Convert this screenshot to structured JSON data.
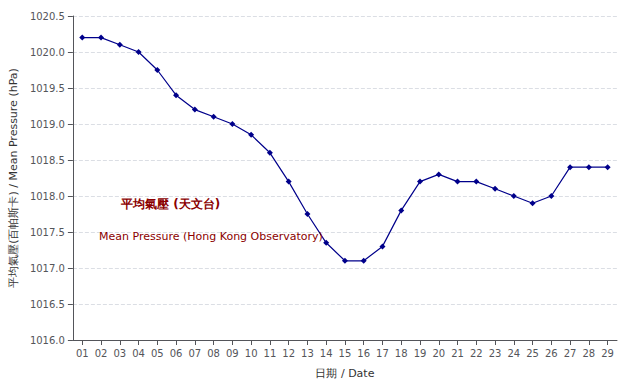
{
  "chart_data": {
    "type": "line",
    "xlabel": "日期 / Date",
    "ylabel": "平均氣壓(百帕斯卡) / Mean Pressure (hPa)",
    "x": [
      1,
      2,
      3,
      4,
      5,
      6,
      7,
      8,
      9,
      10,
      11,
      12,
      13,
      14,
      15,
      16,
      17,
      18,
      19,
      20,
      21,
      22,
      23,
      24,
      25,
      26,
      27,
      28,
      29
    ],
    "values": [
      1020.2,
      1020.2,
      1020.1,
      1020.0,
      1019.75,
      1019.4,
      1019.2,
      1019.1,
      1019.0,
      1018.85,
      1018.6,
      1018.2,
      1017.75,
      1017.35,
      1017.1,
      1017.1,
      1017.3,
      1017.8,
      1018.2,
      1018.3,
      1018.2,
      1018.2,
      1018.1,
      1018.0,
      1017.9,
      1018.0,
      1018.4,
      1018.4,
      1018.4
    ],
    "color": "#00008B",
    "marker": "diamond",
    "xlim": [
      0.5,
      29.5
    ],
    "xticks": [
      {
        "value": 1,
        "label": "01"
      },
      {
        "value": 2,
        "label": "02"
      },
      {
        "value": 3,
        "label": "03"
      },
      {
        "value": 4,
        "label": "04"
      },
      {
        "value": 5,
        "label": "05"
      },
      {
        "value": 6,
        "label": "06"
      },
      {
        "value": 7,
        "label": "07"
      },
      {
        "value": 8,
        "label": "08"
      },
      {
        "value": 9,
        "label": "09"
      },
      {
        "value": 10,
        "label": "10"
      },
      {
        "value": 11,
        "label": "11"
      },
      {
        "value": 12,
        "label": "12"
      },
      {
        "value": 13,
        "label": "13"
      },
      {
        "value": 14,
        "label": "14"
      },
      {
        "value": 15,
        "label": "15"
      },
      {
        "value": 16,
        "label": "16"
      },
      {
        "value": 17,
        "label": "17"
      },
      {
        "value": 18,
        "label": "18"
      },
      {
        "value": 19,
        "label": "19"
      },
      {
        "value": 20,
        "label": "20"
      },
      {
        "value": 21,
        "label": "21"
      },
      {
        "value": 22,
        "label": "22"
      },
      {
        "value": 23,
        "label": "23"
      },
      {
        "value": 24,
        "label": "24"
      },
      {
        "value": 25,
        "label": "25"
      },
      {
        "value": 26,
        "label": "26"
      },
      {
        "value": 27,
        "label": "27"
      },
      {
        "value": 28,
        "label": "28"
      },
      {
        "value": 29,
        "label": "29"
      }
    ],
    "ylim": [
      1016.0,
      1020.5
    ],
    "yticks": [
      {
        "value": 1016.0,
        "label": "1016.0"
      },
      {
        "value": 1016.5,
        "label": "1016.5"
      },
      {
        "value": 1017.0,
        "label": "1017.0"
      },
      {
        "value": 1017.5,
        "label": "1017.5"
      },
      {
        "value": 1018.0,
        "label": "1018.0"
      },
      {
        "value": 1018.5,
        "label": "1018.5"
      },
      {
        "value": 1019.0,
        "label": "1019.0"
      },
      {
        "value": 1019.5,
        "label": "1019.5"
      },
      {
        "value": 1020.0,
        "label": "1020.0"
      },
      {
        "value": 1020.5,
        "label": "1020.5"
      }
    ],
    "grid": true,
    "annotations": [
      {
        "text": "平均氣壓 (天文台)",
        "color": "#8B0000"
      },
      {
        "text": "Mean Pressure (Hong Kong Observatory)",
        "color": "#8B0000"
      }
    ]
  }
}
